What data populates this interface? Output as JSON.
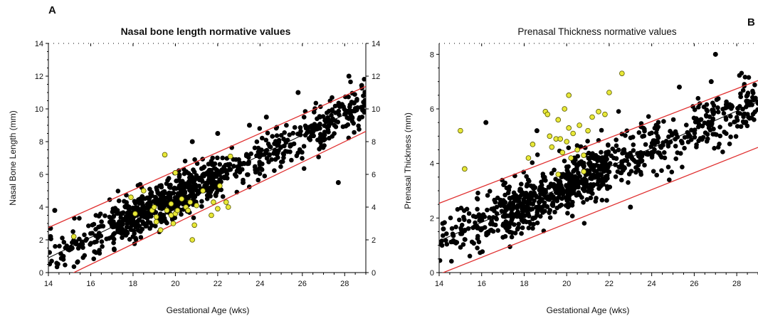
{
  "colors": {
    "normal": "#000000",
    "case": "#e8e838",
    "case_stroke": "#555500",
    "ref_line": "#e03030",
    "regression": "#000000"
  },
  "chart_data": [
    {
      "type": "scatter",
      "panel_label": "A",
      "title": "Nasal bone length normative values",
      "xlabel": "Gestational Age (wks)",
      "ylabel": "Nasal Bone Length (mm)",
      "xlim": [
        14,
        29
      ],
      "ylim": [
        0,
        14
      ],
      "x_ticks": [
        "14",
        "16",
        "18",
        "20",
        "22",
        "24",
        "26",
        "28"
      ],
      "y_ticks": [
        "0",
        "2",
        "4",
        "6",
        "8",
        "10",
        "12",
        "14"
      ],
      "right_y_ticks": [
        "0",
        "2",
        "4",
        "6",
        "8",
        "10",
        "12",
        "14"
      ],
      "grid": false,
      "regression": {
        "intercept": -7.85,
        "slope": 0.625
      },
      "reference_lines": [
        {
          "intercept": -5.3,
          "slope": 0.575
        },
        {
          "intercept": -9.5,
          "slope": 0.625
        }
      ],
      "normal_cloud": {
        "count": 950,
        "sd": 0.65,
        "seed": 7,
        "x_range": [
          14,
          29
        ]
      },
      "normal_points": [
        {
          "x": 14.1,
          "y": 2.2
        },
        {
          "x": 14.1,
          "y": 2.7
        },
        {
          "x": 14.3,
          "y": 3.8
        },
        {
          "x": 27.7,
          "y": 5.5
        },
        {
          "x": 28.2,
          "y": 12.0
        },
        {
          "x": 23.2,
          "y": 5.5
        },
        {
          "x": 26.9,
          "y": 7.7
        },
        {
          "x": 24.3,
          "y": 9.5
        },
        {
          "x": 23.5,
          "y": 9.0
        },
        {
          "x": 25.8,
          "y": 11.0
        },
        {
          "x": 22.0,
          "y": 8.5
        },
        {
          "x": 20.8,
          "y": 8.0
        }
      ],
      "case_points": [
        {
          "x": 15.2,
          "y": 2.2
        },
        {
          "x": 17.9,
          "y": 4.6
        },
        {
          "x": 18.1,
          "y": 3.6
        },
        {
          "x": 18.9,
          "y": 3.8
        },
        {
          "x": 19.0,
          "y": 4.0
        },
        {
          "x": 19.1,
          "y": 3.1
        },
        {
          "x": 19.1,
          "y": 3.4
        },
        {
          "x": 19.3,
          "y": 2.6
        },
        {
          "x": 19.6,
          "y": 3.8
        },
        {
          "x": 19.8,
          "y": 4.2
        },
        {
          "x": 19.8,
          "y": 3.5
        },
        {
          "x": 19.9,
          "y": 3.0
        },
        {
          "x": 20.0,
          "y": 3.6
        },
        {
          "x": 20.1,
          "y": 3.8
        },
        {
          "x": 20.3,
          "y": 4.5
        },
        {
          "x": 20.5,
          "y": 4.0
        },
        {
          "x": 20.6,
          "y": 3.8
        },
        {
          "x": 20.7,
          "y": 4.3
        },
        {
          "x": 20.8,
          "y": 2.0
        },
        {
          "x": 20.9,
          "y": 2.9
        },
        {
          "x": 21.0,
          "y": 4.1
        },
        {
          "x": 21.3,
          "y": 5.0
        },
        {
          "x": 21.7,
          "y": 3.5
        },
        {
          "x": 21.8,
          "y": 4.3
        },
        {
          "x": 22.0,
          "y": 3.9
        },
        {
          "x": 22.1,
          "y": 5.3
        },
        {
          "x": 22.4,
          "y": 4.3
        },
        {
          "x": 22.5,
          "y": 4.0
        },
        {
          "x": 18.5,
          "y": 5.0
        },
        {
          "x": 19.5,
          "y": 7.2
        },
        {
          "x": 20.0,
          "y": 6.1
        },
        {
          "x": 22.6,
          "y": 7.1
        }
      ]
    },
    {
      "type": "scatter",
      "panel_label": "B",
      "title": "Prenasal Thickness normative values",
      "xlabel": "Gestational Age (wks)",
      "ylabel": "Prenasal Thickness (mm)",
      "xlim": [
        14,
        29
      ],
      "ylim": [
        0,
        8.4
      ],
      "x_ticks": [
        "14",
        "16",
        "18",
        "20",
        "22",
        "24",
        "26",
        "28"
      ],
      "y_ticks": [
        "0",
        "2",
        "4",
        "6",
        "8"
      ],
      "grid": false,
      "regression": {
        "intercept": -3.6,
        "slope": 0.34
      },
      "reference_lines": [
        {
          "intercept": -1.66,
          "slope": 0.3
        },
        {
          "intercept": -4.4,
          "slope": 0.31
        }
      ],
      "normal_cloud": {
        "count": 950,
        "sd": 0.5,
        "seed": 13,
        "x_range": [
          14,
          29
        ]
      },
      "normal_points": [
        {
          "x": 16.2,
          "y": 5.5
        },
        {
          "x": 14.2,
          "y": 1.6
        },
        {
          "x": 15.1,
          "y": 1.5
        },
        {
          "x": 16.0,
          "y": 1.6
        },
        {
          "x": 23.0,
          "y": 2.4
        },
        {
          "x": 27.0,
          "y": 8.0
        },
        {
          "x": 26.8,
          "y": 7.0
        },
        {
          "x": 25.3,
          "y": 6.8
        },
        {
          "x": 28.5,
          "y": 6.5
        },
        {
          "x": 18.6,
          "y": 5.2
        }
      ],
      "case_points": [
        {
          "x": 15.0,
          "y": 5.2
        },
        {
          "x": 15.2,
          "y": 3.8
        },
        {
          "x": 18.2,
          "y": 4.2
        },
        {
          "x": 18.4,
          "y": 4.7
        },
        {
          "x": 19.0,
          "y": 5.9
        },
        {
          "x": 19.1,
          "y": 5.8
        },
        {
          "x": 19.2,
          "y": 5.0
        },
        {
          "x": 19.3,
          "y": 4.6
        },
        {
          "x": 19.5,
          "y": 4.9
        },
        {
          "x": 19.6,
          "y": 5.6
        },
        {
          "x": 19.7,
          "y": 4.9
        },
        {
          "x": 19.8,
          "y": 4.4
        },
        {
          "x": 19.9,
          "y": 6.0
        },
        {
          "x": 20.0,
          "y": 4.8
        },
        {
          "x": 20.1,
          "y": 5.3
        },
        {
          "x": 20.1,
          "y": 6.5
        },
        {
          "x": 20.3,
          "y": 5.1
        },
        {
          "x": 20.5,
          "y": 4.5
        },
        {
          "x": 20.6,
          "y": 5.4
        },
        {
          "x": 20.8,
          "y": 4.3
        },
        {
          "x": 21.0,
          "y": 5.2
        },
        {
          "x": 21.2,
          "y": 5.7
        },
        {
          "x": 21.5,
          "y": 5.9
        },
        {
          "x": 21.8,
          "y": 5.8
        },
        {
          "x": 22.0,
          "y": 6.6
        },
        {
          "x": 22.6,
          "y": 7.3
        },
        {
          "x": 19.6,
          "y": 3.6
        },
        {
          "x": 20.2,
          "y": 4.2
        },
        {
          "x": 20.8,
          "y": 3.7
        }
      ]
    }
  ]
}
